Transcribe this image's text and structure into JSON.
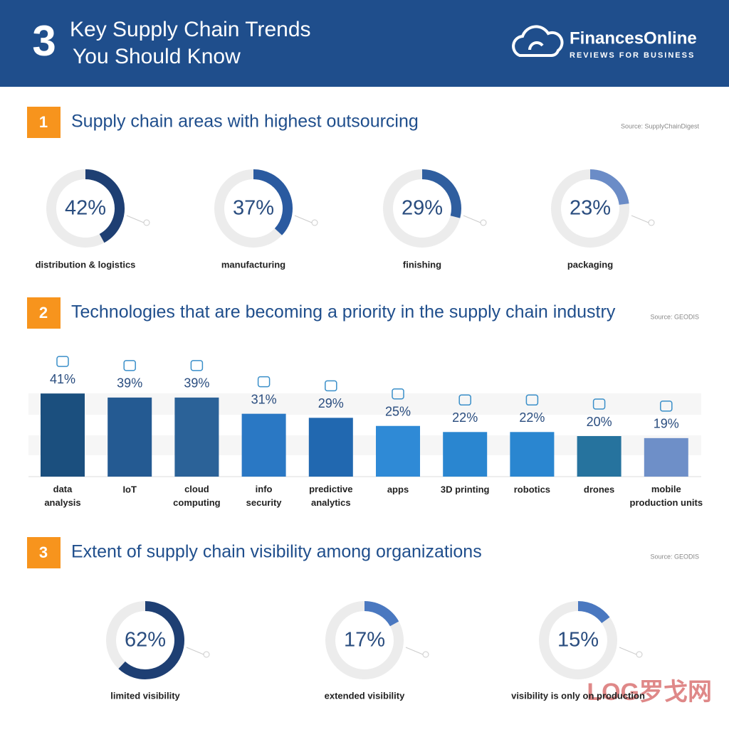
{
  "header": {
    "number": "3",
    "title_lines": [
      "Key Supply Chain Trends",
      "You Should Know"
    ],
    "brand": "FinancesOnline",
    "tagline": "REVIEWS FOR BUSINESS"
  },
  "chart_data": [
    {
      "type": "donut",
      "number": "1",
      "title": "Supply chain areas with highest outsourcing",
      "source": "Source:  SupplyChainDigest",
      "categories": [
        "distribution & logistics",
        "manufacturing",
        "finishing",
        "packaging"
      ],
      "values": [
        42,
        37,
        29,
        23
      ],
      "value_labels": [
        "42%",
        "37%",
        "29%",
        "23%"
      ],
      "colors": [
        "#1e3f73",
        "#2a5aa0",
        "#2f5e9f",
        "#6b8cc7"
      ]
    },
    {
      "type": "bar",
      "number": "2",
      "title": "Technologies that are becoming a priority in the supply chain industry",
      "source": "Source: GEODIS",
      "categories": [
        "data analysis",
        "IoT",
        "cloud computing",
        "info security",
        "predictive analytics",
        "apps",
        "3D printing",
        "robotics",
        "drones",
        "mobile production units"
      ],
      "values": [
        41,
        39,
        39,
        31,
        29,
        25,
        22,
        22,
        20,
        19
      ],
      "value_labels": [
        "41%",
        "39%",
        "39%",
        "31%",
        "29%",
        "25%",
        "22%",
        "22%",
        "20%",
        "19%"
      ],
      "colors": [
        "#1b4f7e",
        "#245a92",
        "#2b6298",
        "#2a78c4",
        "#2168b0",
        "#2f8ad6",
        "#2a86d0",
        "#2a86d0",
        "#26739e",
        "#6e8fc8"
      ]
    },
    {
      "type": "donut",
      "number": "3",
      "title": "Extent of supply chain visibility among organizations",
      "source": "Source: GEODIS",
      "categories": [
        "limited visibility",
        "extended visibility",
        "visibility is only on production"
      ],
      "values": [
        62,
        17,
        15
      ],
      "value_labels": [
        "62%",
        "17%",
        "15%"
      ],
      "colors": [
        "#1e3f73",
        "#4a78c0",
        "#4a78c0"
      ]
    }
  ],
  "watermark": "LOG罗戈网"
}
